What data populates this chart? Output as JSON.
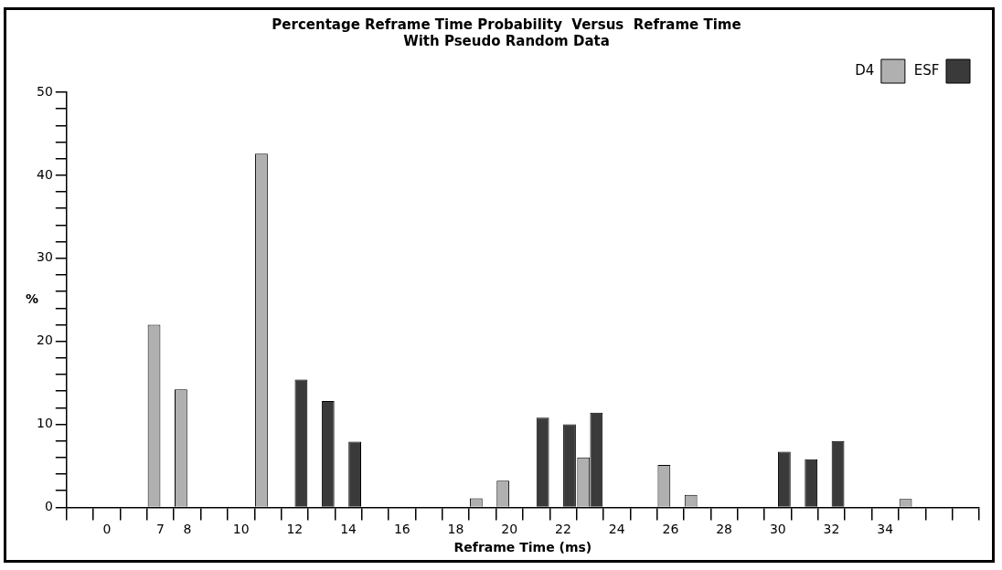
{
  "chart_data": {
    "type": "bar",
    "title": "Percentage Reframe Time Probability  Versus  Reframe Time",
    "subtitle": "With Pseudo Random Data",
    "xlabel": "Reframe Time (ms)",
    "ylabel": "%",
    "categories": [
      null,
      "0",
      null,
      "7",
      "8",
      null,
      "10",
      null,
      "12",
      null,
      "14",
      null,
      "16",
      null,
      "18",
      null,
      "20",
      null,
      "22",
      null,
      "24",
      null,
      "26",
      null,
      "28",
      null,
      "30",
      null,
      "32",
      null,
      "34",
      null,
      null,
      null
    ],
    "series": [
      {
        "name": "D4",
        "color": "#b0b0b0",
        "values": [
          null,
          null,
          null,
          22.0,
          14.2,
          null,
          null,
          42.6,
          null,
          null,
          null,
          null,
          null,
          null,
          null,
          1.1,
          3.2,
          null,
          null,
          6.0,
          null,
          null,
          5.1,
          1.5,
          null,
          null,
          null,
          null,
          null,
          null,
          null,
          1.0,
          null,
          null
        ]
      },
      {
        "name": "ESF",
        "color": "#3a3a3a",
        "values": [
          null,
          null,
          null,
          null,
          null,
          null,
          null,
          null,
          15.4,
          12.8,
          7.9,
          null,
          null,
          null,
          null,
          null,
          null,
          10.8,
          10.0,
          11.4,
          null,
          null,
          null,
          null,
          null,
          null,
          6.7,
          5.8,
          8.0,
          null,
          null,
          null,
          null,
          null
        ]
      }
    ],
    "ylim": [
      0,
      50
    ],
    "yticks": [
      0,
      {
        "value": 2,
        "label": null
      },
      {
        "value": 4,
        "label": null
      },
      {
        "value": 6,
        "label": null
      },
      {
        "value": 8,
        "label": null
      },
      10,
      {
        "value": 12,
        "label": null
      },
      {
        "value": 14,
        "label": null
      },
      {
        "value": 16,
        "label": null
      },
      {
        "value": 18,
        "label": null
      },
      20,
      {
        "value": 22,
        "label": null
      },
      {
        "value": 24,
        "label": null
      },
      {
        "value": 26,
        "label": null
      },
      {
        "value": 28,
        "label": null
      },
      30,
      {
        "value": 32,
        "label": null
      },
      {
        "value": 34,
        "label": null
      },
      {
        "value": 36,
        "label": null
      },
      {
        "value": 38,
        "label": null
      },
      40,
      {
        "value": 42,
        "label": null
      },
      {
        "value": 44,
        "label": null
      },
      {
        "value": 46,
        "label": null
      },
      {
        "value": 48,
        "label": null
      },
      50
    ],
    "legend": "top right"
  }
}
